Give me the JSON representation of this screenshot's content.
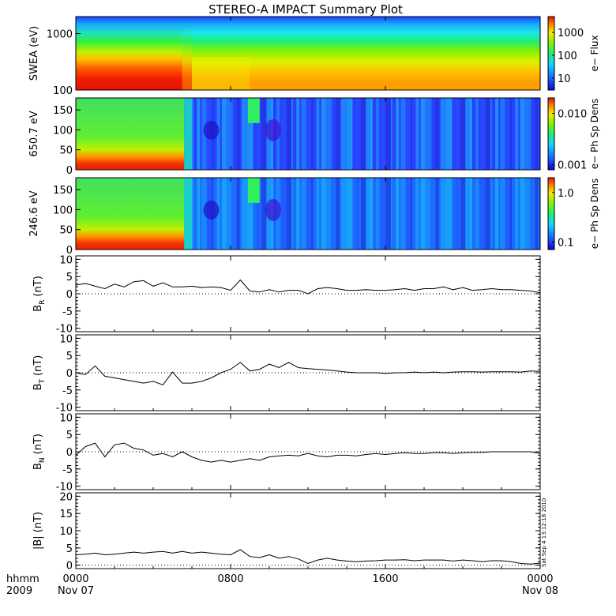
{
  "title": "STEREO-A IMPACT Summary Plot",
  "x_axis": {
    "name_line1": "hhmm",
    "name_line2": "2009",
    "ticks": [
      {
        "hours": 0,
        "label": "0000",
        "sublabel": "Nov 07"
      },
      {
        "hours": 8,
        "label": "0800",
        "sublabel": ""
      },
      {
        "hours": 16,
        "label": "1600",
        "sublabel": ""
      },
      {
        "hours": 24,
        "label": "0000",
        "sublabel": "Nov 08"
      }
    ],
    "range_hours": [
      0,
      24
    ]
  },
  "stamp": "Sat Sep  4 13:12:18 2010",
  "colors": {
    "trace": "#000000",
    "frame": "#000000",
    "background": "#ffffff"
  },
  "spectrograms": [
    {
      "ylabel": "SWEA (eV)",
      "yscale": "log",
      "ylim": [
        100,
        2000
      ],
      "yticks": [
        {
          "v": 100,
          "label": "100"
        },
        {
          "v": 1000,
          "label": "1000"
        }
      ],
      "cbar_label": "e− Flux",
      "cbar_scale": "log",
      "cbar_ticks": [
        {
          "v": 10,
          "label": "10"
        },
        {
          "v": 100,
          "label": "100"
        },
        {
          "v": 1000,
          "label": "1000"
        }
      ],
      "cbar_range": [
        3,
        5000
      ],
      "pattern": "swea",
      "data": [
        [
          0,
          "red"
        ],
        [
          5.5,
          "red"
        ],
        [
          6.0,
          "green"
        ],
        [
          8.7,
          "green"
        ],
        [
          9.2,
          "yellow"
        ],
        [
          24,
          "yellow"
        ]
      ]
    },
    {
      "ylabel": "650.7 eV",
      "yscale": "linear",
      "ylim": [
        0,
        180
      ],
      "yticks": [
        {
          "v": 0,
          "label": "0"
        },
        {
          "v": 50,
          "label": "50"
        },
        {
          "v": 100,
          "label": "100"
        },
        {
          "v": 150,
          "label": "150"
        }
      ],
      "cbar_label": "e− Ph Sp Dens",
      "cbar_scale": "log",
      "cbar_ticks": [
        {
          "v": 0.001,
          "label": "0.001"
        },
        {
          "v": 0.01,
          "label": "0.010"
        }
      ],
      "cbar_range": [
        0.0008,
        0.02
      ],
      "pattern": "pad650",
      "data": [
        [
          0,
          "high"
        ],
        [
          5.5,
          "high"
        ],
        [
          6.0,
          "low"
        ],
        [
          24,
          "low"
        ]
      ]
    },
    {
      "ylabel": "246.6 eV",
      "yscale": "linear",
      "ylim": [
        0,
        180
      ],
      "yticks": [
        {
          "v": 0,
          "label": "0"
        },
        {
          "v": 50,
          "label": "50"
        },
        {
          "v": 100,
          "label": "100"
        },
        {
          "v": 150,
          "label": "150"
        }
      ],
      "cbar_label": "e− Ph Sp Dens",
      "cbar_scale": "log",
      "cbar_ticks": [
        {
          "v": 0.1,
          "label": "0.1"
        },
        {
          "v": 1.0,
          "label": "1.0"
        }
      ],
      "cbar_range": [
        0.07,
        2.0
      ],
      "pattern": "pad246",
      "data": [
        [
          0,
          "high"
        ],
        [
          5.5,
          "high"
        ],
        [
          6.0,
          "low"
        ],
        [
          24,
          "low"
        ]
      ]
    }
  ],
  "chart_data": [
    {
      "type": "line",
      "ylabel": "B",
      "ylabel_sub": "R",
      "ylabel_unit": "(nT)",
      "ylim": [
        -11,
        11
      ],
      "yticks": [
        -10,
        -5,
        0,
        5,
        10
      ],
      "x_hours": [
        0,
        0.5,
        1,
        1.5,
        2,
        2.5,
        3,
        3.5,
        4,
        4.5,
        5,
        5.5,
        6,
        6.5,
        7,
        7.5,
        8,
        8.5,
        9,
        9.5,
        10,
        10.5,
        11,
        11.5,
        12,
        12.5,
        13,
        13.5,
        14,
        14.5,
        15,
        15.5,
        16,
        16.5,
        17,
        17.5,
        18,
        18.5,
        19,
        19.5,
        20,
        20.5,
        21,
        21.5,
        22,
        22.5,
        23,
        23.5,
        24
      ],
      "values": [
        2.5,
        3.0,
        2.2,
        1.5,
        2.8,
        2.0,
        3.5,
        3.8,
        2.2,
        3.2,
        2.0,
        2.0,
        2.2,
        1.8,
        2.0,
        1.8,
        1.0,
        4.0,
        0.8,
        0.5,
        1.2,
        0.5,
        1.0,
        1.0,
        0.0,
        1.5,
        1.8,
        1.5,
        1.0,
        1.0,
        1.2,
        1.0,
        1.0,
        1.2,
        1.5,
        1.0,
        1.5,
        1.5,
        2.0,
        1.2,
        1.8,
        1.0,
        1.2,
        1.5,
        1.2,
        1.2,
        1.0,
        0.8,
        0.3
      ]
    },
    {
      "type": "line",
      "ylabel": "B",
      "ylabel_sub": "T",
      "ylabel_unit": "(nT)",
      "ylim": [
        -11,
        11
      ],
      "yticks": [
        -10,
        -5,
        0,
        5,
        10
      ],
      "x_hours": [
        0,
        0.5,
        1,
        1.5,
        2,
        2.5,
        3,
        3.5,
        4,
        4.5,
        5,
        5.5,
        6,
        6.5,
        7,
        7.5,
        8,
        8.5,
        9,
        9.5,
        10,
        10.5,
        11,
        11.5,
        12,
        12.5,
        13,
        13.5,
        14,
        14.5,
        15,
        15.5,
        16,
        16.5,
        17,
        17.5,
        18,
        18.5,
        19,
        19.5,
        20,
        20.5,
        21,
        21.5,
        22,
        22.5,
        23,
        23.5,
        24
      ],
      "values": [
        0.0,
        -0.5,
        2.0,
        -1.0,
        -1.5,
        -2.0,
        -2.5,
        -3.0,
        -2.5,
        -3.5,
        0.2,
        -3.0,
        -3.0,
        -2.5,
        -1.5,
        0.0,
        1.0,
        3.0,
        0.5,
        1.0,
        2.5,
        1.5,
        3.0,
        1.5,
        1.2,
        1.0,
        0.8,
        0.5,
        0.2,
        0.0,
        0.0,
        0.0,
        -0.2,
        0.0,
        0.0,
        0.2,
        0.0,
        0.2,
        0.0,
        0.2,
        0.3,
        0.3,
        0.2,
        0.3,
        0.3,
        0.3,
        0.2,
        0.5,
        0.4
      ]
    },
    {
      "type": "line",
      "ylabel": "B",
      "ylabel_sub": "N",
      "ylabel_unit": "(nT)",
      "ylim": [
        -11,
        11
      ],
      "yticks": [
        -10,
        -5,
        0,
        5,
        10
      ],
      "x_hours": [
        0,
        0.5,
        1,
        1.5,
        2,
        2.5,
        3,
        3.5,
        4,
        4.5,
        5,
        5.5,
        6,
        6.5,
        7,
        7.5,
        8,
        8.5,
        9,
        9.5,
        10,
        10.5,
        11,
        11.5,
        12,
        12.5,
        13,
        13.5,
        14,
        14.5,
        15,
        15.5,
        16,
        16.5,
        17,
        17.5,
        18,
        18.5,
        19,
        19.5,
        20,
        20.5,
        21,
        21.5,
        22,
        22.5,
        23,
        23.5,
        24
      ],
      "values": [
        -1.0,
        1.5,
        2.5,
        -1.5,
        2.0,
        2.5,
        1.0,
        0.5,
        -1.0,
        -0.5,
        -1.5,
        0.0,
        -1.5,
        -2.5,
        -3.0,
        -2.5,
        -3.0,
        -2.5,
        -2.0,
        -2.5,
        -1.5,
        -1.2,
        -1.0,
        -1.2,
        -0.5,
        -1.2,
        -1.5,
        -1.0,
        -1.0,
        -1.2,
        -0.8,
        -0.5,
        -0.8,
        -0.5,
        -0.3,
        -0.5,
        -0.5,
        -0.3,
        -0.3,
        -0.5,
        -0.3,
        -0.2,
        -0.2,
        0.0,
        0.0,
        0.0,
        0.0,
        0.0,
        -0.5
      ]
    },
    {
      "type": "line",
      "ylabel": "|B|",
      "ylabel_sub": "",
      "ylabel_unit": "(nT)",
      "ylim": [
        -1,
        21
      ],
      "yticks": [
        0,
        5,
        10,
        15,
        20
      ],
      "x_hours": [
        0,
        0.5,
        1,
        1.5,
        2,
        2.5,
        3,
        3.5,
        4,
        4.5,
        5,
        5.5,
        6,
        6.5,
        7,
        7.5,
        8,
        8.5,
        9,
        9.5,
        10,
        10.5,
        11,
        11.5,
        12,
        12.5,
        13,
        13.5,
        14,
        14.5,
        15,
        15.5,
        16,
        16.5,
        17,
        17.5,
        18,
        18.5,
        19,
        19.5,
        20,
        20.5,
        21,
        21.5,
        22,
        22.5,
        23,
        23.5,
        24
      ],
      "values": [
        3.0,
        3.2,
        3.5,
        3.0,
        3.2,
        3.5,
        3.8,
        3.5,
        3.8,
        4.0,
        3.5,
        4.0,
        3.5,
        3.8,
        3.5,
        3.2,
        3.0,
        4.5,
        2.5,
        2.2,
        3.0,
        2.0,
        2.5,
        1.8,
        0.5,
        1.5,
        2.0,
        1.5,
        1.2,
        1.0,
        1.2,
        1.3,
        1.5,
        1.5,
        1.6,
        1.3,
        1.5,
        1.5,
        1.5,
        1.2,
        1.5,
        1.3,
        1.0,
        1.3,
        1.3,
        1.0,
        0.5,
        0.3,
        0.6
      ]
    }
  ]
}
